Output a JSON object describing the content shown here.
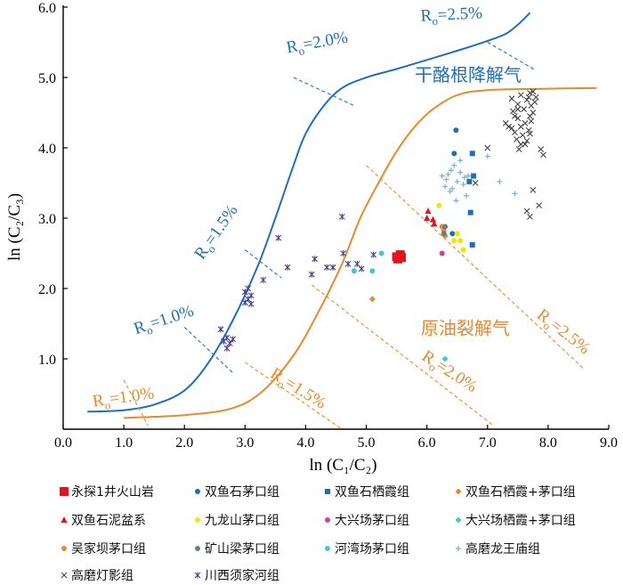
{
  "chart_data": {
    "type": "scatter",
    "xlabel": "ln (C₁/C₂)",
    "ylabel": "ln (C₂/C₃)",
    "xlim": [
      0.0,
      9.0
    ],
    "ylim": [
      0.0,
      6.0
    ],
    "xticks": [
      "0.0",
      "1.0",
      "2.0",
      "3.0",
      "4.0",
      "5.0",
      "6.0",
      "7.0",
      "8.0",
      "9.0"
    ],
    "yticks": [
      "1.0",
      "2.0",
      "3.0",
      "4.0",
      "5.0",
      "6.0"
    ],
    "colors": {
      "blue": "#1f6fb8",
      "orange": "#e8892b"
    },
    "curves": [
      {
        "name": "干酪根降解气",
        "color": "#1f6fb8",
        "points": [
          [
            0.4,
            0.25
          ],
          [
            1.0,
            0.27
          ],
          [
            1.5,
            0.35
          ],
          [
            2.0,
            0.55
          ],
          [
            2.4,
            0.95
          ],
          [
            2.8,
            1.55
          ],
          [
            3.2,
            2.3
          ],
          [
            3.5,
            3.0
          ],
          [
            3.8,
            3.75
          ],
          [
            4.0,
            4.2
          ],
          [
            4.3,
            4.6
          ],
          [
            4.6,
            4.85
          ],
          [
            5.0,
            5.0
          ],
          [
            5.5,
            5.12
          ],
          [
            6.0,
            5.25
          ],
          [
            6.5,
            5.38
          ],
          [
            7.0,
            5.52
          ],
          [
            7.3,
            5.62
          ],
          [
            7.5,
            5.75
          ],
          [
            7.7,
            5.92
          ]
        ]
      },
      {
        "name": "原油裂解气",
        "color": "#e8892b",
        "points": [
          [
            1.0,
            0.16
          ],
          [
            2.0,
            0.2
          ],
          [
            2.8,
            0.3
          ],
          [
            3.3,
            0.55
          ],
          [
            3.8,
            1.05
          ],
          [
            4.2,
            1.65
          ],
          [
            4.6,
            2.35
          ],
          [
            4.9,
            3.0
          ],
          [
            5.2,
            3.5
          ],
          [
            5.5,
            3.95
          ],
          [
            5.8,
            4.3
          ],
          [
            6.1,
            4.55
          ],
          [
            6.5,
            4.75
          ],
          [
            7.0,
            4.82
          ],
          [
            8.0,
            4.84
          ],
          [
            8.8,
            4.85
          ]
        ]
      }
    ],
    "ro_lines": [
      {
        "label": "R",
        "sub": "o",
        "value": "=1.0%",
        "color": "#e8892b",
        "line": [
          [
            1.0,
            0.7
          ],
          [
            1.4,
            0.05
          ]
        ],
        "label_at": [
          0.5,
          0.32
        ],
        "rotate": -8
      },
      {
        "label": "R",
        "sub": "o",
        "value": "=1.5%",
        "color": "#e8892b",
        "line": [
          [
            3.0,
            0.95
          ],
          [
            4.6,
            0.0
          ]
        ],
        "label_at": [
          3.4,
          0.75
        ],
        "rotate": 32
      },
      {
        "label": "R",
        "sub": "o",
        "value": "=2.0%",
        "color": "#e8892b",
        "line": [
          [
            4.1,
            2.05
          ],
          [
            7.1,
            0.05
          ]
        ],
        "label_at": [
          5.9,
          1.0
        ],
        "rotate": 33
      },
      {
        "label": "R",
        "sub": "o",
        "value": "=2.5%",
        "color": "#e8892b",
        "line": [
          [
            5.0,
            3.75
          ],
          [
            8.6,
            0.85
          ]
        ],
        "label_at": [
          7.8,
          1.6
        ],
        "rotate": 38
      },
      {
        "label": "R",
        "sub": "o",
        "value": "=1.0%",
        "color": "#1f6fb8",
        "line": [
          [
            2.0,
            1.45
          ],
          [
            2.8,
            0.8
          ]
        ],
        "label_at": [
          1.2,
          1.35
        ],
        "rotate": -18
      },
      {
        "label": "R",
        "sub": "o",
        "value": "=1.5%",
        "color": "#1f6fb8",
        "line": [
          [
            3.0,
            2.55
          ],
          [
            3.6,
            2.15
          ]
        ],
        "label_at": [
          2.3,
          2.4
        ],
        "rotate": -55
      },
      {
        "label": "R",
        "sub": "o",
        "value": "=2.0%",
        "color": "#1f6fb8",
        "line": [
          [
            3.8,
            5.0
          ],
          [
            4.8,
            4.6
          ]
        ],
        "label_at": [
          3.7,
          5.35
        ],
        "rotate": -10
      },
      {
        "label": "R",
        "sub": "o",
        "value": "=2.5%",
        "color": "#1f6fb8",
        "line": [
          [
            7.0,
            5.5
          ],
          [
            7.8,
            5.1
          ]
        ],
        "label_at": [
          5.9,
          5.8
        ],
        "rotate": -3
      }
    ],
    "region_labels": [
      {
        "text": "干酪根降解气",
        "color": "#1f6fb8",
        "at": [
          5.8,
          4.95
        ]
      },
      {
        "text": "原油裂解气",
        "color": "#e8892b",
        "at": [
          5.9,
          1.35
        ]
      }
    ],
    "series": [
      {
        "name": "永探1井火山岩",
        "color": "#e8101c",
        "marker": "square-big",
        "points": [
          [
            5.5,
            2.45
          ],
          [
            5.56,
            2.48
          ],
          [
            5.52,
            2.42
          ],
          [
            5.58,
            2.44
          ]
        ]
      },
      {
        "name": "双鱼石茅口组",
        "color": "#1f6fb8",
        "marker": "circle",
        "points": [
          [
            6.48,
            4.25
          ],
          [
            6.45,
            3.92
          ],
          [
            6.42,
            2.78
          ]
        ]
      },
      {
        "name": "双鱼石栖霞组",
        "color": "#1f6fb8",
        "marker": "square",
        "points": [
          [
            6.75,
            3.92
          ],
          [
            6.77,
            3.6
          ],
          [
            6.7,
            3.52
          ],
          [
            6.72,
            3.08
          ],
          [
            6.75,
            2.62
          ]
        ]
      },
      {
        "name": "双鱼石栖霞+茅口组",
        "color": "#e8892b",
        "marker": "diamond",
        "points": [
          [
            5.1,
            1.85
          ]
        ]
      },
      {
        "name": "双鱼石泥盆系",
        "color": "#e8101c",
        "marker": "triangle",
        "points": [
          [
            6.02,
            3.1
          ],
          [
            6.1,
            2.98
          ],
          [
            6.0,
            3.0
          ],
          [
            6.12,
            2.92
          ]
        ]
      },
      {
        "name": "九龙山茅口组",
        "color": "#f2e40a",
        "marker": "circle",
        "points": [
          [
            6.2,
            3.18
          ],
          [
            6.3,
            2.88
          ],
          [
            6.5,
            2.78
          ],
          [
            6.55,
            2.68
          ],
          [
            6.6,
            2.55
          ],
          [
            6.45,
            2.68
          ]
        ]
      },
      {
        "name": "大兴场茅口组",
        "color": "#d6408f",
        "marker": "circle",
        "points": [
          [
            6.25,
            2.5
          ]
        ]
      },
      {
        "name": "大兴场栖霞+茅口组",
        "color": "#50c4c4",
        "marker": "diamond",
        "points": [
          [
            6.3,
            1.0
          ]
        ]
      },
      {
        "name": "吴家坝茅口组",
        "color": "#e8892b",
        "marker": "circle",
        "points": [
          [
            6.25,
            2.88
          ],
          [
            6.28,
            2.82
          ],
          [
            6.3,
            2.75
          ]
        ]
      },
      {
        "name": "矿山梁茅口组",
        "color": "#6b7a8c",
        "marker": "circle",
        "points": [
          [
            6.3,
            2.88
          ],
          [
            6.28,
            2.78
          ]
        ]
      },
      {
        "name": "河湾场茅口组",
        "color": "#50c4c4",
        "marker": "circle",
        "points": [
          [
            4.8,
            2.25
          ],
          [
            5.1,
            2.25
          ],
          [
            5.25,
            2.5
          ]
        ]
      },
      {
        "name": "高磨龙王庙组",
        "color": "#69b5e0",
        "marker": "plus",
        "points": [
          [
            6.25,
            3.6
          ],
          [
            6.32,
            3.55
          ],
          [
            6.4,
            3.68
          ],
          [
            6.45,
            3.75
          ],
          [
            6.3,
            3.45
          ],
          [
            6.38,
            3.38
          ],
          [
            6.5,
            3.52
          ],
          [
            6.55,
            3.65
          ],
          [
            6.6,
            3.48
          ],
          [
            6.48,
            3.25
          ],
          [
            6.55,
            3.82
          ],
          [
            6.62,
            3.58
          ],
          [
            6.35,
            3.62
          ],
          [
            6.42,
            3.42
          ],
          [
            6.68,
            3.6
          ],
          [
            7.0,
            3.88
          ],
          [
            7.2,
            3.52
          ],
          [
            7.45,
            3.35
          ],
          [
            6.65,
            3.32
          ]
        ]
      },
      {
        "name": "高磨灯影组",
        "color": "#444444",
        "marker": "x",
        "points": [
          [
            7.4,
            4.7
          ],
          [
            7.5,
            4.62
          ],
          [
            7.55,
            4.75
          ],
          [
            7.6,
            4.55
          ],
          [
            7.65,
            4.68
          ],
          [
            7.7,
            4.78
          ],
          [
            7.72,
            4.6
          ],
          [
            7.5,
            4.42
          ],
          [
            7.55,
            4.3
          ],
          [
            7.62,
            4.35
          ],
          [
            7.68,
            4.25
          ],
          [
            7.7,
            4.45
          ],
          [
            7.75,
            4.5
          ],
          [
            7.45,
            4.22
          ],
          [
            7.4,
            4.28
          ],
          [
            7.48,
            4.12
          ],
          [
            7.55,
            4.05
          ],
          [
            7.58,
            4.18
          ],
          [
            7.65,
            4.1
          ],
          [
            7.7,
            4.2
          ],
          [
            7.52,
            3.98
          ],
          [
            7.62,
            4.05
          ],
          [
            7.68,
            4.72
          ],
          [
            7.75,
            4.8
          ],
          [
            7.8,
            4.72
          ],
          [
            7.78,
            4.65
          ],
          [
            7.35,
            4.3
          ],
          [
            7.3,
            4.35
          ],
          [
            7.42,
            4.52
          ],
          [
            7.88,
            3.98
          ],
          [
            7.92,
            3.9
          ],
          [
            7.5,
            4.55
          ],
          [
            7.45,
            4.45
          ],
          [
            7.72,
            4.38
          ],
          [
            7.0,
            4.0
          ],
          [
            6.8,
            3.5
          ],
          [
            7.65,
            3.1
          ],
          [
            7.85,
            3.18
          ],
          [
            7.75,
            3.4
          ],
          [
            7.7,
            3.02
          ]
        ]
      },
      {
        "name": "川西须家河组",
        "color": "#4a3f8f",
        "marker": "asterisk",
        "points": [
          [
            2.6,
            1.42
          ],
          [
            2.7,
            1.3
          ],
          [
            2.75,
            1.22
          ],
          [
            2.65,
            1.25
          ],
          [
            2.8,
            1.28
          ],
          [
            2.7,
            1.15
          ],
          [
            3.0,
            1.8
          ],
          [
            3.05,
            1.85
          ],
          [
            3.1,
            1.9
          ],
          [
            3.0,
            1.95
          ],
          [
            3.05,
            2.0
          ],
          [
            3.1,
            1.78
          ],
          [
            3.3,
            2.12
          ],
          [
            3.55,
            2.72
          ],
          [
            3.7,
            2.3
          ],
          [
            4.1,
            2.2
          ],
          [
            4.15,
            2.42
          ],
          [
            4.35,
            2.3
          ],
          [
            4.45,
            2.3
          ],
          [
            4.6,
            3.02
          ],
          [
            4.62,
            2.5
          ],
          [
            4.7,
            2.35
          ],
          [
            4.85,
            2.35
          ],
          [
            4.92,
            2.28
          ],
          [
            5.12,
            2.48
          ]
        ]
      }
    ]
  },
  "legend": {
    "rows": [
      [
        "永探1井火山岩",
        "双鱼石茅口组",
        "双鱼石栖霞组",
        "双鱼石栖霞+茅口组"
      ],
      [
        "双鱼石泥盆系",
        "九龙山茅口组",
        "大兴场茅口组",
        "大兴场栖霞+茅口组"
      ],
      [
        "吴家坝茅口组",
        "矿山梁茅口组",
        "河湾场茅口组",
        "高磨龙王庙组"
      ],
      [
        "高磨灯影组",
        "川西须家河组"
      ]
    ]
  }
}
